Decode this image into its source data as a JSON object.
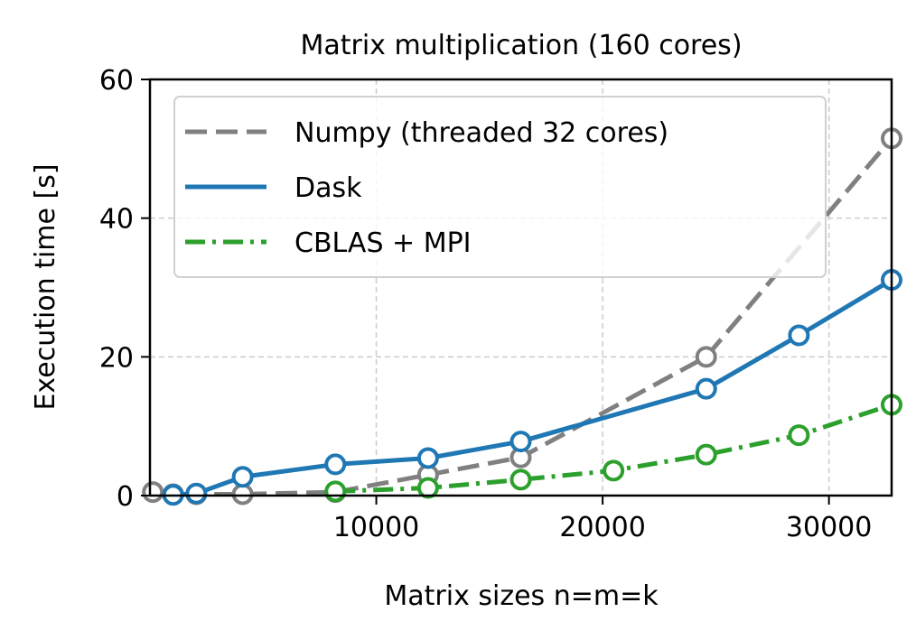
{
  "chart_data": {
    "type": "line",
    "title": "Matrix multiplication (160 cores)",
    "xlabel": "Matrix sizes n=m=k",
    "ylabel": "Execution time [s]",
    "xlim": [
      0,
      32768
    ],
    "ylim": [
      0,
      60
    ],
    "xticks": [
      10000,
      20000,
      30000
    ],
    "xtick_labels": [
      "10000",
      "20000",
      "30000"
    ],
    "yticks": [
      0,
      20,
      40,
      60
    ],
    "ytick_labels": [
      "0",
      "20",
      "40",
      "60"
    ],
    "grid": true,
    "legend_position": "upper-left",
    "series": [
      {
        "name": "Numpy (threaded 32 cores)",
        "style": "dashed",
        "color": "#808080",
        "x": [
          128,
          1024,
          2048,
          4096,
          8192,
          12288,
          16384,
          24576,
          32768
        ],
        "y": [
          0.5,
          0.2,
          0.2,
          0.2,
          0.5,
          3.0,
          5.5,
          20.0,
          51.5
        ]
      },
      {
        "name": "Dask",
        "style": "solid",
        "color": "#1f77b4",
        "x": [
          1024,
          2048,
          4096,
          8192,
          12288,
          16384,
          24576,
          28672,
          32768
        ],
        "y": [
          0.1,
          0.3,
          2.7,
          4.5,
          5.4,
          7.8,
          15.4,
          23.1,
          31.1
        ]
      },
      {
        "name": "CBLAS + MPI",
        "style": "dashdot",
        "color": "#2ca02c",
        "x": [
          8192,
          12288,
          16384,
          20480,
          24576,
          28672,
          32768
        ],
        "y": [
          0.6,
          1.1,
          2.3,
          3.6,
          5.9,
          8.7,
          13.1
        ]
      }
    ]
  }
}
